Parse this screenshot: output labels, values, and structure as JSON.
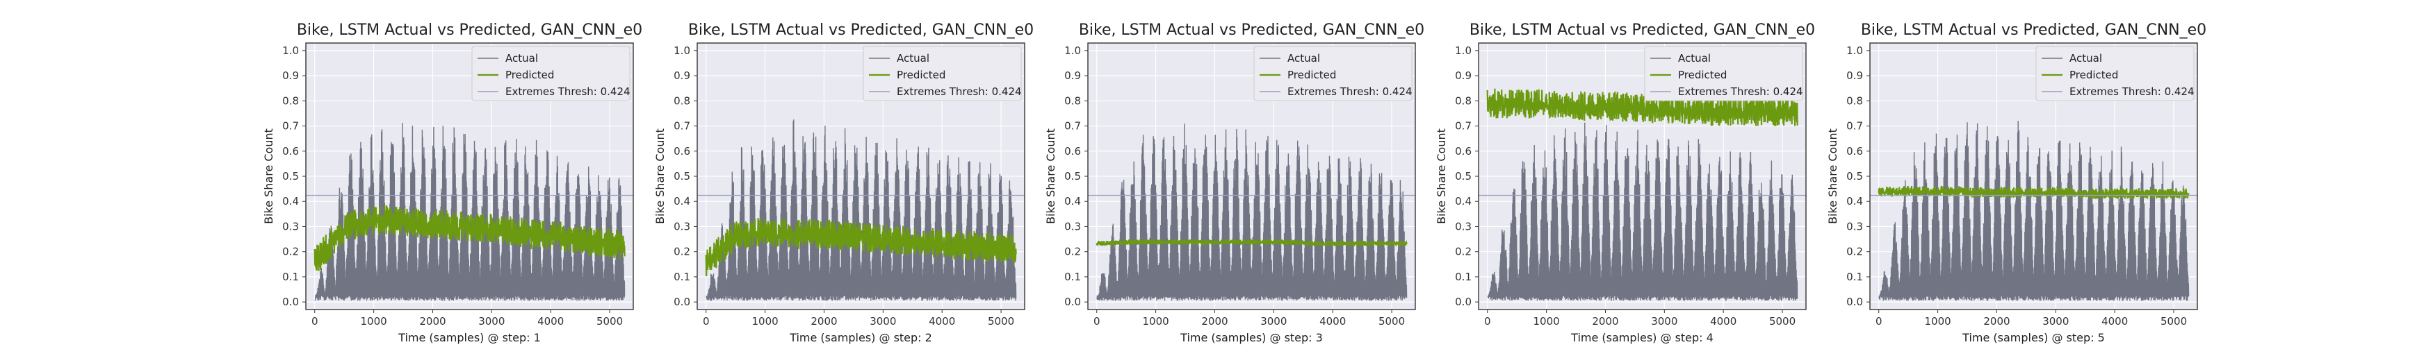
{
  "colors": {
    "plot_bg": "#e9e9f1",
    "grid": "#ffffff",
    "actual": "#707483",
    "predicted": "#6b9a10",
    "thresh": "#9aa0c0"
  },
  "chart_data": [
    {
      "type": "line",
      "title": "Bike, LSTM Actual vs Predicted, GAN_CNN_e0",
      "xlabel": "Time (samples) @ step: 1",
      "ylabel": "Bike Share Count",
      "xlim": [
        -150,
        5400
      ],
      "ylim": [
        -0.03,
        1.03
      ],
      "xticks": [
        0,
        1000,
        2000,
        3000,
        4000,
        5000
      ],
      "yticks": [
        0.0,
        0.1,
        0.2,
        0.3,
        0.4,
        0.5,
        0.6,
        0.7,
        0.8,
        0.9,
        1.0
      ],
      "grid": true,
      "legend": "top-right",
      "threshold": 0.424,
      "series": [
        {
          "name": "Actual",
          "x_range": [
            0,
            5250
          ],
          "values": [
            0.0,
            0.55,
            0.62,
            0.66,
            0.64,
            0.63,
            0.6,
            0.58,
            0.55,
            0.5,
            0.45
          ]
        },
        {
          "name": "Predicted",
          "x_range": [
            0,
            5250
          ],
          "values": [
            0.17,
            0.31,
            0.34,
            0.33,
            0.32,
            0.31,
            0.3,
            0.28,
            0.27,
            0.25,
            0.24
          ]
        },
        {
          "name": "Extremes Thresh: 0.424",
          "values": [
            0.424
          ]
        }
      ]
    },
    {
      "type": "line",
      "title": "Bike, LSTM Actual vs Predicted, GAN_CNN_e0",
      "xlabel": "Time (samples) @ step: 2",
      "ylabel": "Bike Share Count",
      "xlim": [
        -150,
        5400
      ],
      "ylim": [
        -0.03,
        1.03
      ],
      "xticks": [
        0,
        1000,
        2000,
        3000,
        4000,
        5000
      ],
      "yticks": [
        0.0,
        0.1,
        0.2,
        0.3,
        0.4,
        0.5,
        0.6,
        0.7,
        0.8,
        0.9,
        1.0
      ],
      "grid": true,
      "legend": "top-right",
      "threshold": 0.424,
      "series": [
        {
          "name": "Actual",
          "x_range": [
            0,
            5250
          ],
          "values": [
            0.0,
            0.55,
            0.62,
            0.66,
            0.64,
            0.63,
            0.6,
            0.58,
            0.55,
            0.5,
            0.45
          ]
        },
        {
          "name": "Predicted",
          "x_range": [
            0,
            5250
          ],
          "values": [
            0.17,
            0.28,
            0.29,
            0.28,
            0.28,
            0.27,
            0.26,
            0.25,
            0.24,
            0.23,
            0.22
          ]
        },
        {
          "name": "Extremes Thresh: 0.424",
          "values": [
            0.424
          ]
        }
      ]
    },
    {
      "type": "line",
      "title": "Bike, LSTM Actual vs Predicted, GAN_CNN_e0",
      "xlabel": "Time (samples) @ step: 3",
      "ylabel": "Bike Share Count",
      "xlim": [
        -150,
        5400
      ],
      "ylim": [
        -0.03,
        1.03
      ],
      "xticks": [
        0,
        1000,
        2000,
        3000,
        4000,
        5000
      ],
      "yticks": [
        0.0,
        0.1,
        0.2,
        0.3,
        0.4,
        0.5,
        0.6,
        0.7,
        0.8,
        0.9,
        1.0
      ],
      "grid": true,
      "legend": "top-right",
      "threshold": 0.424,
      "series": [
        {
          "name": "Actual",
          "x_range": [
            0,
            5250
          ],
          "values": [
            0.0,
            0.55,
            0.62,
            0.66,
            0.64,
            0.63,
            0.6,
            0.58,
            0.55,
            0.5,
            0.45
          ]
        },
        {
          "name": "Predicted",
          "x_range": [
            0,
            5250
          ],
          "values": [
            0.235,
            0.24,
            0.24,
            0.24,
            0.24,
            0.24,
            0.24,
            0.235,
            0.235,
            0.235,
            0.235
          ]
        },
        {
          "name": "Extremes Thresh: 0.424",
          "values": [
            0.424
          ]
        }
      ]
    },
    {
      "type": "line",
      "title": "Bike, LSTM Actual vs Predicted, GAN_CNN_e0",
      "xlabel": "Time (samples) @ step: 4",
      "ylabel": "Bike Share Count",
      "xlim": [
        -150,
        5400
      ],
      "ylim": [
        -0.03,
        1.03
      ],
      "xticks": [
        0,
        1000,
        2000,
        3000,
        4000,
        5000
      ],
      "yticks": [
        0.0,
        0.1,
        0.2,
        0.3,
        0.4,
        0.5,
        0.6,
        0.7,
        0.8,
        0.9,
        1.0
      ],
      "grid": true,
      "legend": "top-right",
      "threshold": 0.424,
      "series": [
        {
          "name": "Actual",
          "x_range": [
            0,
            5250
          ],
          "values": [
            0.0,
            0.55,
            0.62,
            0.66,
            0.64,
            0.63,
            0.6,
            0.58,
            0.55,
            0.5,
            0.45
          ]
        },
        {
          "name": "Predicted",
          "x_range": [
            0,
            5250
          ],
          "values": [
            0.8,
            0.8,
            0.8,
            0.79,
            0.79,
            0.78,
            0.78,
            0.77,
            0.77,
            0.77,
            0.77
          ]
        },
        {
          "name": "Extremes Thresh: 0.424",
          "values": [
            0.424
          ]
        }
      ]
    },
    {
      "type": "line",
      "title": "Bike, LSTM Actual vs Predicted, GAN_CNN_e0",
      "xlabel": "Time (samples) @ step: 5",
      "ylabel": "Bike Share Count",
      "xlim": [
        -150,
        5400
      ],
      "ylim": [
        -0.03,
        1.03
      ],
      "xticks": [
        0,
        1000,
        2000,
        3000,
        4000,
        5000
      ],
      "yticks": [
        0.0,
        0.1,
        0.2,
        0.3,
        0.4,
        0.5,
        0.6,
        0.7,
        0.8,
        0.9,
        1.0
      ],
      "grid": true,
      "legend": "top-right",
      "threshold": 0.424,
      "series": [
        {
          "name": "Actual",
          "x_range": [
            0,
            5250
          ],
          "values": [
            0.0,
            0.55,
            0.62,
            0.66,
            0.64,
            0.63,
            0.6,
            0.58,
            0.55,
            0.5,
            0.45
          ]
        },
        {
          "name": "Predicted",
          "x_range": [
            0,
            5250
          ],
          "values": [
            0.44,
            0.445,
            0.445,
            0.44,
            0.44,
            0.44,
            0.44,
            0.435,
            0.435,
            0.435,
            0.435
          ]
        },
        {
          "name": "Extremes Thresh: 0.424",
          "values": [
            0.424
          ]
        }
      ]
    }
  ]
}
